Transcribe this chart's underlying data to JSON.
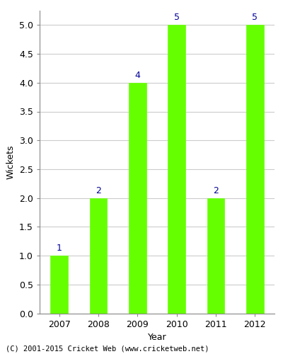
{
  "years": [
    "2007",
    "2008",
    "2009",
    "2010",
    "2011",
    "2012"
  ],
  "values": [
    1,
    2,
    4,
    5,
    2,
    5
  ],
  "bar_color": "#66ff00",
  "bar_edge_color": "#66ff00",
  "label_color": "#000099",
  "ylabel": "Wickets",
  "xlabel": "Year",
  "ylim": [
    0,
    5.25
  ],
  "yticks": [
    0.0,
    0.5,
    1.0,
    1.5,
    2.0,
    2.5,
    3.0,
    3.5,
    4.0,
    4.5,
    5.0
  ],
  "label_fontsize": 9,
  "axis_fontsize": 9,
  "tick_fontsize": 9,
  "footer": "(C) 2001-2015 Cricket Web (www.cricketweb.net)",
  "background_color": "#ffffff",
  "grid_color": "#cccccc",
  "bar_width": 0.45
}
